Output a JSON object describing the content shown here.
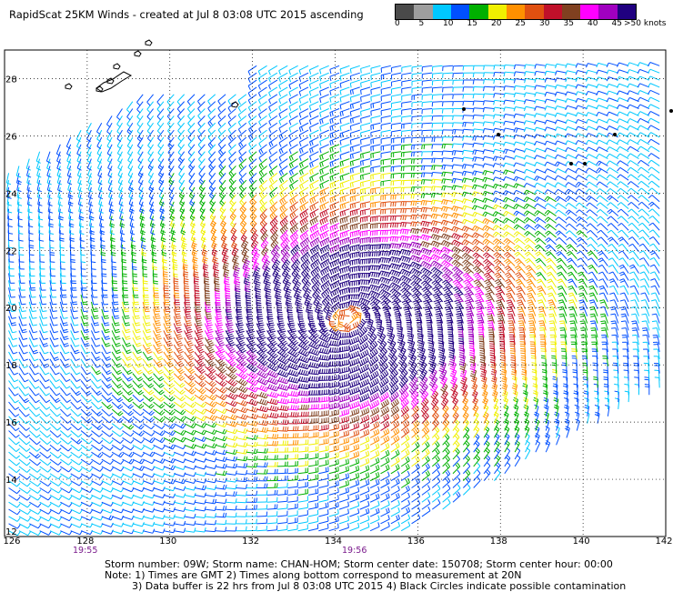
{
  "header": {
    "title": "RapidScat 25KM Winds - created at Jul  8 03:08 UTC 2015 ascending"
  },
  "legend": {
    "unit_label": ">50 knots",
    "ticks": [
      "0",
      "5",
      "10",
      "15",
      "20",
      "25",
      "30",
      "35",
      "40",
      "45"
    ],
    "colors": [
      "#4a4a4a",
      "#9e9e9e",
      "#00c8ff",
      "#0050ff",
      "#00b000",
      "#f0f000",
      "#ff9000",
      "#e05010",
      "#c0102a",
      "#804020",
      "#ff00ff",
      "#a000c0",
      "#200080"
    ]
  },
  "map": {
    "lon_labels": [
      "128",
      "130",
      "132",
      "134",
      "136",
      "138",
      "140",
      "142"
    ],
    "lat_labels": [
      "14",
      "16",
      "18",
      "20",
      "22",
      "24",
      "26",
      "28"
    ],
    "lon_edge_label": "126",
    "lat_edge_label": "12",
    "grid_lon": [
      126,
      128,
      130,
      132,
      134,
      136,
      138,
      140,
      142
    ],
    "grid_lat": [
      12,
      14,
      16,
      18,
      20,
      22,
      24,
      26,
      28
    ],
    "storm_center": {
      "lon": 134.3,
      "lat": 19.6
    }
  },
  "times": [
    "19:55",
    "19:56"
  ],
  "footer": {
    "line1": "Storm number: 09W;  Storm name: CHAN-HOM;  Storm center date: 150708;  Storm center hour: 00:00",
    "line2": "Note: 1) Times are GMT  2) Times along bottom correspond to measurement at 20N",
    "line3": "3) Data buffer is 22 hrs from Jul  8 03:08 UTC 2015   4) Black Circles indicate possible contamination"
  }
}
